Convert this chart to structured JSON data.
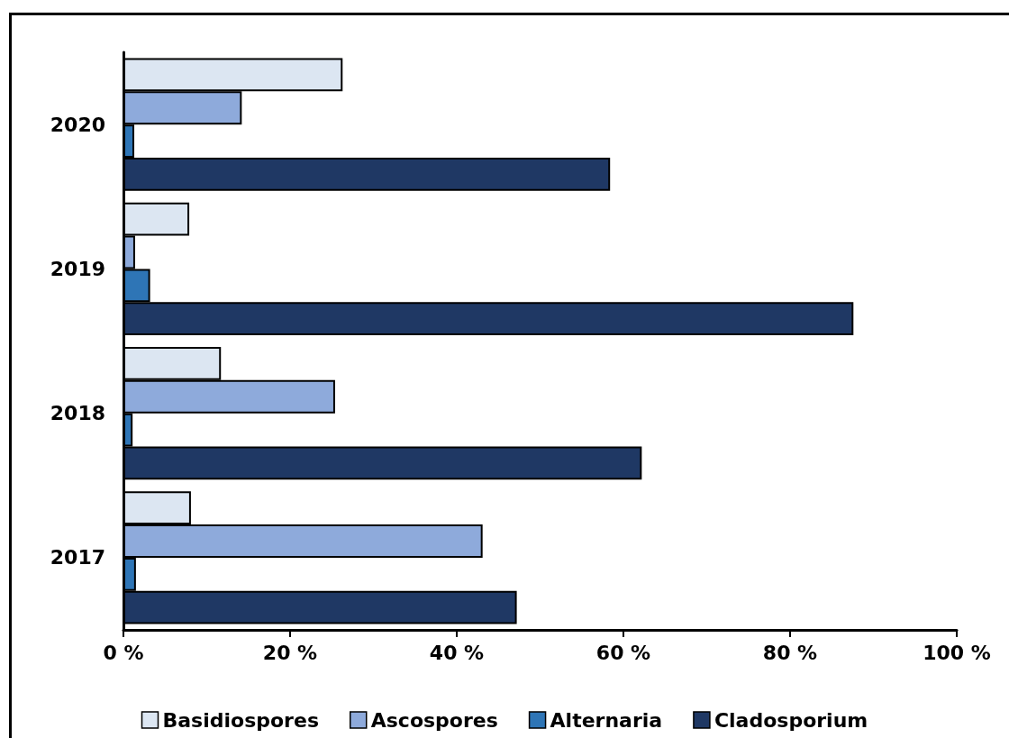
{
  "chart_data": {
    "type": "bar",
    "orientation": "horizontal",
    "categories": [
      "2020",
      "2019",
      "2018",
      "2017"
    ],
    "series": [
      {
        "name": "Basidiospores",
        "color": "#dce6f2",
        "values": [
          26.3,
          7.9,
          11.7,
          8.1
        ]
      },
      {
        "name": "Ascospores",
        "color": "#8eaadb",
        "values": [
          14.2,
          1.4,
          25.4,
          43.1
        ]
      },
      {
        "name": "Alternaria",
        "color": "#2e75b6",
        "values": [
          1.3,
          3.2,
          1.1,
          1.5
        ]
      },
      {
        "name": "Cladosporium",
        "color": "#1f3864",
        "values": [
          58.4,
          87.6,
          62.2,
          47.2
        ]
      }
    ],
    "xlim": [
      0,
      100
    ],
    "xticks": [
      {
        "value": 0,
        "label": "0 %"
      },
      {
        "value": 20,
        "label": "20 %"
      },
      {
        "value": 40,
        "label": "40 %"
      },
      {
        "value": 60,
        "label": "60 %"
      },
      {
        "value": 80,
        "label": "80 %"
      },
      {
        "value": 100,
        "label": "100 %"
      }
    ],
    "grid": false,
    "legend": "bottom"
  }
}
